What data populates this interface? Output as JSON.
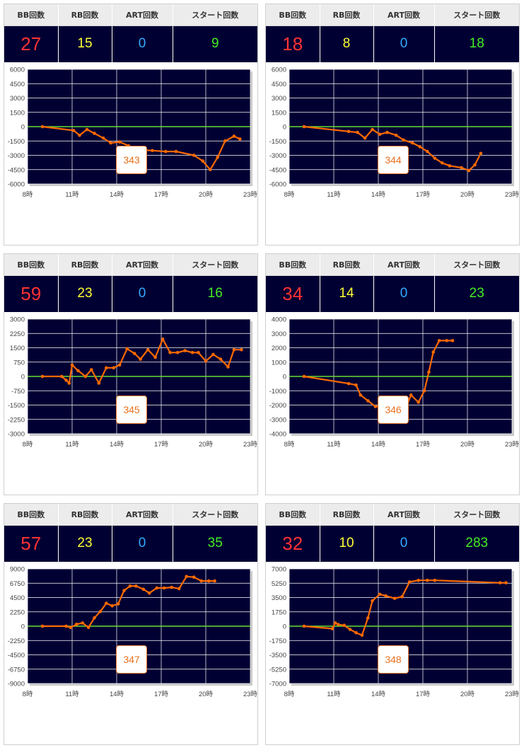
{
  "headers": {
    "bb": "BB回数",
    "rb": "RB回数",
    "art": "ART回数",
    "start": "スタート回数"
  },
  "hour_ticks": [
    "8時",
    "11時",
    "14時",
    "17時",
    "20時",
    "23時"
  ],
  "colors": {
    "bg": "#010033",
    "line": "#ff6a00",
    "zero": "#66dd33",
    "grid": "#ffffff"
  },
  "machines": [
    {
      "number": "343",
      "bb": "27",
      "rb": "15",
      "art": "0",
      "start": "9"
    },
    {
      "number": "344",
      "bb": "18",
      "rb": "8",
      "art": "0",
      "start": "18"
    },
    {
      "number": "345",
      "bb": "59",
      "rb": "23",
      "art": "0",
      "start": "16"
    },
    {
      "number": "346",
      "bb": "34",
      "rb": "14",
      "art": "0",
      "start": "23"
    },
    {
      "number": "347",
      "bb": "57",
      "rb": "23",
      "art": "0",
      "start": "35"
    },
    {
      "number": "348",
      "bb": "32",
      "rb": "10",
      "art": "0",
      "start": "283"
    }
  ],
  "chart_data": [
    {
      "type": "line",
      "title": "343",
      "xlim": [
        8,
        23
      ],
      "ylim": [
        -6000,
        6000
      ],
      "yticks": [
        "6000",
        "4500",
        "3000",
        "1500",
        "0",
        "-1500",
        "-3000",
        "-4500",
        "-6000"
      ],
      "x": [
        9,
        11.1,
        11.5,
        12,
        12.5,
        13.1,
        13.6,
        14.2,
        14.8,
        15.3,
        15.8,
        16.4,
        17.3,
        18,
        19.2,
        19.8,
        20.3,
        20.8,
        21.3,
        21.9,
        22.3
      ],
      "y": [
        0,
        -400,
        -900,
        -300,
        -700,
        -1200,
        -1700,
        -1600,
        -2000,
        -2300,
        -2450,
        -2500,
        -2600,
        -2600,
        -3000,
        -3600,
        -4500,
        -3200,
        -1500,
        -1000,
        -1300
      ]
    },
    {
      "type": "line",
      "title": "344",
      "xlim": [
        8,
        23
      ],
      "ylim": [
        -6000,
        6000
      ],
      "yticks": [
        "6000",
        "4500",
        "3000",
        "1500",
        "0",
        "-1500",
        "-3000",
        "-4500",
        "-6000"
      ],
      "x": [
        9,
        12,
        12.6,
        13.1,
        13.6,
        14.1,
        14.6,
        15.2,
        15.7,
        16.3,
        16.8,
        17.3,
        17.8,
        18.3,
        18.8,
        19.6,
        20.1,
        20.5,
        20.9
      ],
      "y": [
        0,
        -500,
        -600,
        -1200,
        -300,
        -800,
        -600,
        -900,
        -1400,
        -1700,
        -2100,
        -2600,
        -3300,
        -3800,
        -4100,
        -4300,
        -4600,
        -4000,
        -2800
      ]
    },
    {
      "type": "line",
      "title": "345",
      "xlim": [
        8,
        23
      ],
      "ylim": [
        -3000,
        3000
      ],
      "yticks": [
        "3000",
        "2250",
        "1500",
        "750",
        "0",
        "-750",
        "-1500",
        "-2250",
        "-3000"
      ],
      "x": [
        9,
        10.3,
        10.6,
        10.8,
        11,
        11.4,
        11.9,
        12.3,
        12.8,
        13.3,
        13.8,
        14.2,
        14.7,
        15.2,
        15.6,
        16.1,
        16.6,
        17.1,
        17.6,
        18.1,
        18.6,
        19.1,
        19.5,
        20,
        20.5,
        21,
        21.5,
        21.9,
        22.4
      ],
      "y": [
        0,
        0,
        -200,
        -350,
        600,
        300,
        0,
        350,
        -350,
        450,
        450,
        600,
        1450,
        1200,
        900,
        1400,
        1000,
        1950,
        1250,
        1250,
        1350,
        1250,
        1250,
        800,
        1150,
        900,
        500,
        1400,
        1400
      ]
    },
    {
      "type": "line",
      "title": "346",
      "xlim": [
        8,
        23
      ],
      "ylim": [
        -4000,
        4000
      ],
      "yticks": [
        "4000",
        "3000",
        "2000",
        "1000",
        "0",
        "-1000",
        "-2000",
        "-3000",
        "-4000"
      ],
      "x": [
        9,
        12,
        12.5,
        12.8,
        13.3,
        13.8,
        14.2,
        14.7,
        15.2,
        15.7,
        16.2,
        16.7,
        17.1,
        17.4,
        17.7,
        18.1,
        18.6,
        19
      ],
      "y": [
        0,
        -500,
        -600,
        -1300,
        -1700,
        -2100,
        -2100,
        -2600,
        -2100,
        -2600,
        -1300,
        -1800,
        -1000,
        300,
        1700,
        2500,
        2500,
        2500
      ]
    },
    {
      "type": "line",
      "title": "347",
      "xlim": [
        8,
        23
      ],
      "ylim": [
        -9000,
        9000
      ],
      "yticks": [
        "9000",
        "6750",
        "4500",
        "2250",
        "0",
        "-2250",
        "-4500",
        "-6750",
        "-9000"
      ],
      "x": [
        9,
        10.6,
        10.9,
        11.3,
        11.7,
        12.1,
        12.5,
        12.9,
        13.3,
        13.7,
        14.1,
        14.5,
        14.9,
        15.3,
        15.8,
        16.2,
        16.7,
        17.2,
        17.7,
        18.2,
        18.7,
        19.2,
        19.7,
        20.2,
        20.6
      ],
      "y": [
        0,
        0,
        -200,
        300,
        500,
        -200,
        1300,
        2300,
        3600,
        3200,
        3500,
        5600,
        6300,
        6300,
        5800,
        5200,
        6000,
        6000,
        6100,
        5900,
        7800,
        7700,
        7100,
        7100,
        7100
      ]
    },
    {
      "type": "line",
      "title": "348",
      "xlim": [
        8,
        23
      ],
      "ylim": [
        -7000,
        7000
      ],
      "yticks": [
        "7000",
        "5250",
        "3500",
        "1750",
        "0",
        "-1750",
        "-3500",
        "-5250",
        "-7000"
      ],
      "x": [
        9,
        10.9,
        11.1,
        11.3,
        11.7,
        12.1,
        12.5,
        12.9,
        13.3,
        13.6,
        14.1,
        14.5,
        15.1,
        15.6,
        16.1,
        16.7,
        17.3,
        17.8,
        22.2,
        22.6
      ],
      "y": [
        0,
        -300,
        400,
        200,
        100,
        -400,
        -800,
        -1100,
        1000,
        3100,
        3900,
        3700,
        3400,
        3600,
        5400,
        5600,
        5600,
        5600,
        5300,
        5300
      ]
    }
  ]
}
